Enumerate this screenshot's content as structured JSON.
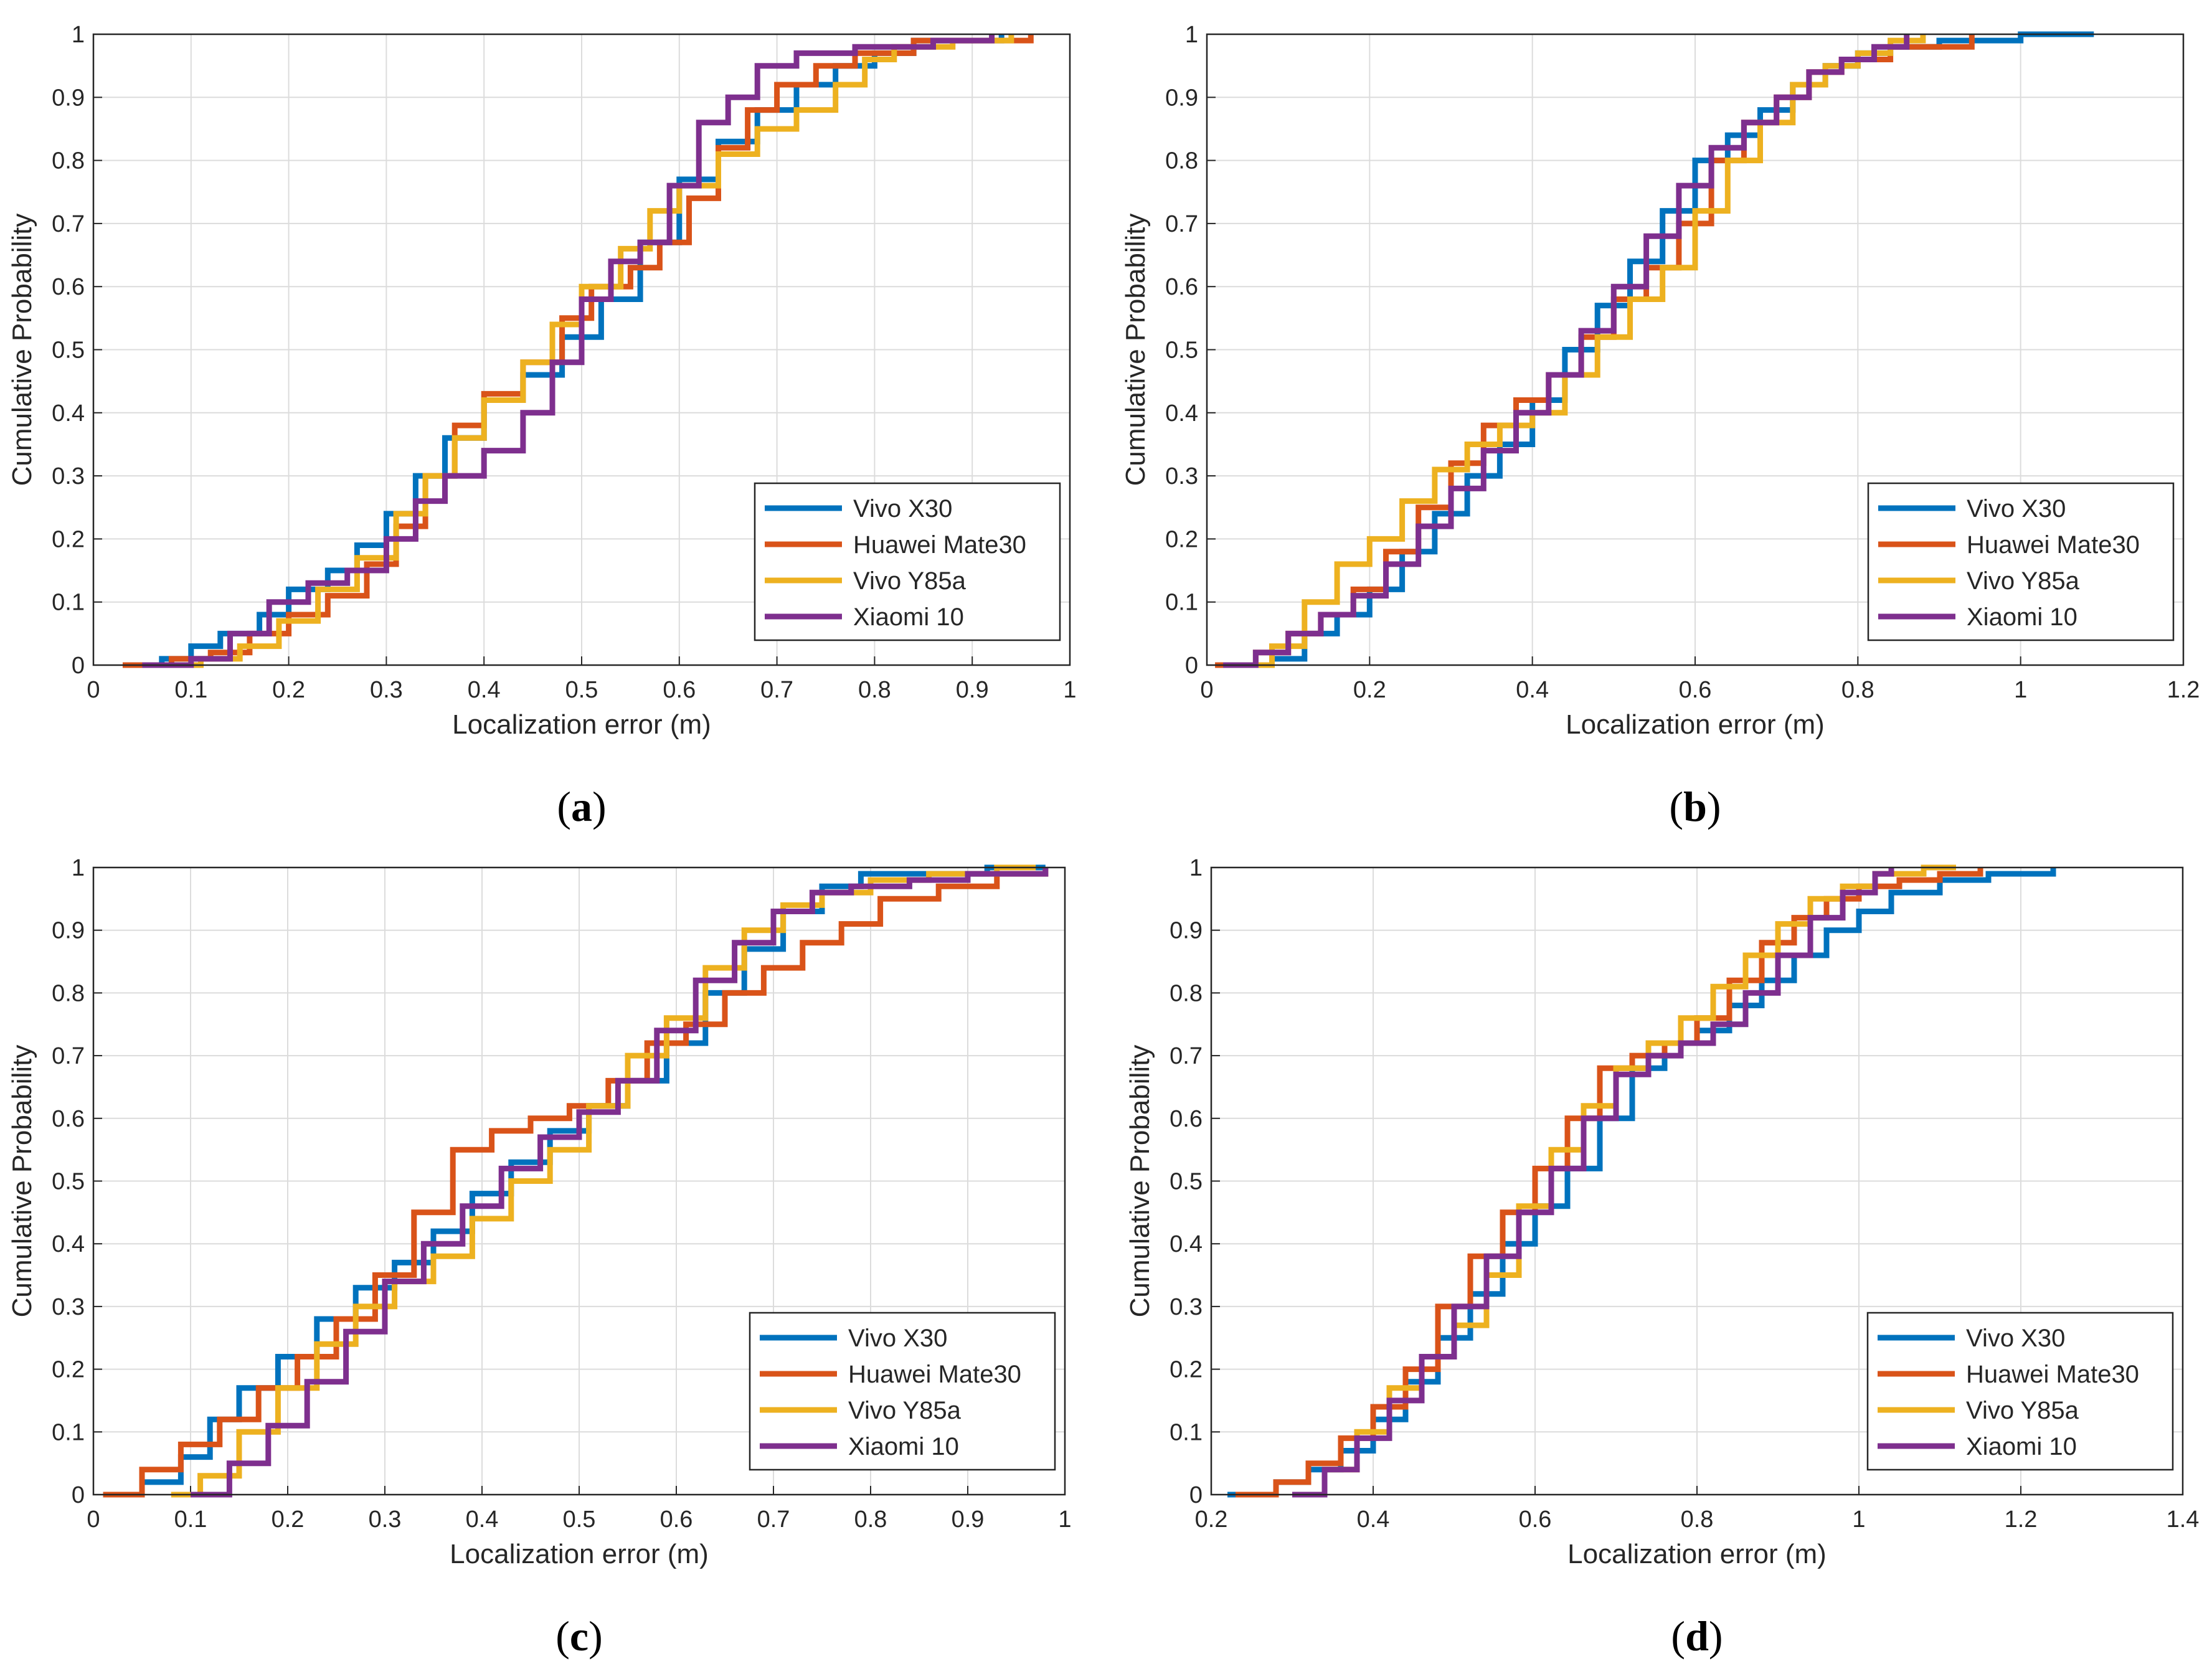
{
  "colors": {
    "vivo_x30": "#0072BD",
    "huawei_mate30": "#D95319",
    "vivo_y85a": "#EDB120",
    "xiaomi_10": "#7E2F8E",
    "grid": "#dcdcdc",
    "axis": "#262626"
  },
  "chart_data": [
    {
      "type": "line",
      "panel": "a",
      "caption_letter": "a",
      "xlabel": "Localization error (m)",
      "ylabel": "Cumulative Probability",
      "xlim": [
        0,
        1
      ],
      "ylim": [
        0,
        1
      ],
      "xticks": [
        "0",
        "0.1",
        "0.2",
        "0.3",
        "0.4",
        "0.5",
        "0.6",
        "0.7",
        "0.8",
        "0.9",
        "1"
      ],
      "yticks": [
        "0",
        "0.1",
        "0.2",
        "0.3",
        "0.4",
        "0.5",
        "0.6",
        "0.7",
        "0.8",
        "0.9",
        "1"
      ],
      "grid": true,
      "legend_position": "bottom-right",
      "series": [
        {
          "name": "Vivo X30",
          "color": "#0072BD",
          "x": [
            0.03,
            0.07,
            0.1,
            0.13,
            0.17,
            0.2,
            0.24,
            0.27,
            0.3,
            0.33,
            0.36,
            0.4,
            0.44,
            0.48,
            0.52,
            0.56,
            0.6,
            0.64,
            0.68,
            0.72,
            0.76,
            0.8,
            0.84,
            0.93
          ],
          "y": [
            0.0,
            0.01,
            0.03,
            0.05,
            0.08,
            0.12,
            0.15,
            0.19,
            0.24,
            0.3,
            0.36,
            0.42,
            0.46,
            0.52,
            0.58,
            0.67,
            0.77,
            0.83,
            0.88,
            0.92,
            0.95,
            0.97,
            0.99,
            1.0
          ]
        },
        {
          "name": "Huawei Mate30",
          "color": "#D95319",
          "x": [
            0.03,
            0.08,
            0.12,
            0.16,
            0.2,
            0.24,
            0.28,
            0.31,
            0.34,
            0.37,
            0.4,
            0.44,
            0.48,
            0.51,
            0.55,
            0.58,
            0.61,
            0.64,
            0.67,
            0.7,
            0.74,
            0.78,
            0.84,
            0.96
          ],
          "y": [
            0.0,
            0.01,
            0.02,
            0.05,
            0.08,
            0.11,
            0.16,
            0.22,
            0.3,
            0.38,
            0.43,
            0.48,
            0.55,
            0.6,
            0.63,
            0.67,
            0.74,
            0.82,
            0.88,
            0.92,
            0.95,
            0.97,
            0.99,
            1.0
          ]
        },
        {
          "name": "Vivo Y85a",
          "color": "#EDB120",
          "x": [
            0.06,
            0.11,
            0.15,
            0.19,
            0.23,
            0.27,
            0.31,
            0.34,
            0.37,
            0.4,
            0.44,
            0.47,
            0.5,
            0.54,
            0.57,
            0.6,
            0.64,
            0.68,
            0.72,
            0.76,
            0.79,
            0.82,
            0.88,
            0.94
          ],
          "y": [
            0.0,
            0.01,
            0.03,
            0.07,
            0.12,
            0.17,
            0.24,
            0.3,
            0.36,
            0.42,
            0.48,
            0.54,
            0.6,
            0.66,
            0.72,
            0.76,
            0.81,
            0.85,
            0.88,
            0.92,
            0.96,
            0.98,
            0.99,
            1.0
          ]
        },
        {
          "name": "Xiaomi 10",
          "color": "#7E2F8E",
          "x": [
            0.05,
            0.1,
            0.14,
            0.18,
            0.22,
            0.26,
            0.3,
            0.33,
            0.36,
            0.4,
            0.44,
            0.47,
            0.5,
            0.53,
            0.56,
            0.59,
            0.62,
            0.65,
            0.68,
            0.72,
            0.78,
            0.86,
            0.92
          ],
          "y": [
            0.0,
            0.01,
            0.05,
            0.1,
            0.13,
            0.15,
            0.2,
            0.26,
            0.3,
            0.34,
            0.4,
            0.48,
            0.58,
            0.64,
            0.67,
            0.76,
            0.86,
            0.9,
            0.95,
            0.97,
            0.98,
            0.99,
            1.0
          ]
        }
      ]
    },
    {
      "type": "line",
      "panel": "b",
      "caption_letter": "b",
      "xlabel": "Localization error (m)",
      "ylabel": "Cumulative Probability",
      "xlim": [
        0,
        1.2
      ],
      "ylim": [
        0,
        1
      ],
      "xticks": [
        "0",
        "0.2",
        "0.4",
        "0.6",
        "0.8",
        "1",
        "1.2"
      ],
      "yticks": [
        "0",
        "0.1",
        "0.2",
        "0.3",
        "0.4",
        "0.5",
        "0.6",
        "0.7",
        "0.8",
        "0.9",
        "1"
      ],
      "grid": true,
      "legend_position": "bottom-right",
      "series": [
        {
          "name": "Vivo X30",
          "color": "#0072BD",
          "x": [
            0.03,
            0.08,
            0.12,
            0.16,
            0.2,
            0.24,
            0.28,
            0.32,
            0.36,
            0.4,
            0.44,
            0.48,
            0.52,
            0.56,
            0.6,
            0.64,
            0.68,
            0.72,
            0.76,
            0.8,
            0.84,
            0.9,
            1.0,
            1.09
          ],
          "y": [
            0.0,
            0.01,
            0.05,
            0.08,
            0.12,
            0.18,
            0.24,
            0.3,
            0.35,
            0.42,
            0.5,
            0.57,
            0.64,
            0.72,
            0.8,
            0.84,
            0.88,
            0.92,
            0.95,
            0.97,
            0.98,
            0.99,
            1.0,
            1.0
          ]
        },
        {
          "name": "Huawei Mate30",
          "color": "#D95319",
          "x": [
            0.01,
            0.06,
            0.1,
            0.14,
            0.18,
            0.22,
            0.26,
            0.3,
            0.34,
            0.38,
            0.42,
            0.46,
            0.5,
            0.54,
            0.58,
            0.62,
            0.66,
            0.7,
            0.74,
            0.78,
            0.84,
            0.94
          ],
          "y": [
            0.0,
            0.02,
            0.05,
            0.08,
            0.12,
            0.18,
            0.25,
            0.32,
            0.38,
            0.42,
            0.46,
            0.52,
            0.58,
            0.63,
            0.7,
            0.8,
            0.86,
            0.9,
            0.94,
            0.96,
            0.98,
            1.0
          ]
        },
        {
          "name": "Vivo Y85a",
          "color": "#EDB120",
          "x": [
            0.03,
            0.08,
            0.12,
            0.16,
            0.2,
            0.24,
            0.28,
            0.32,
            0.36,
            0.4,
            0.44,
            0.48,
            0.52,
            0.56,
            0.6,
            0.64,
            0.68,
            0.72,
            0.76,
            0.8,
            0.84,
            0.88
          ],
          "y": [
            0.0,
            0.03,
            0.1,
            0.16,
            0.2,
            0.26,
            0.31,
            0.35,
            0.38,
            0.4,
            0.46,
            0.52,
            0.58,
            0.63,
            0.72,
            0.8,
            0.86,
            0.92,
            0.95,
            0.97,
            0.99,
            1.0
          ]
        },
        {
          "name": "Xiaomi 10",
          "color": "#7E2F8E",
          "x": [
            0.02,
            0.06,
            0.1,
            0.14,
            0.18,
            0.22,
            0.26,
            0.3,
            0.34,
            0.38,
            0.42,
            0.46,
            0.5,
            0.54,
            0.58,
            0.62,
            0.66,
            0.7,
            0.74,
            0.78,
            0.82,
            0.86
          ],
          "y": [
            0.0,
            0.02,
            0.05,
            0.08,
            0.11,
            0.16,
            0.22,
            0.28,
            0.34,
            0.4,
            0.46,
            0.53,
            0.6,
            0.68,
            0.76,
            0.82,
            0.86,
            0.9,
            0.94,
            0.96,
            0.98,
            1.0
          ]
        }
      ]
    },
    {
      "type": "line",
      "panel": "c",
      "caption_letter": "c",
      "xlabel": "Localization error (m)",
      "ylabel": "Cumulative Probability",
      "xlim": [
        0,
        1
      ],
      "ylim": [
        0,
        1
      ],
      "xticks": [
        "0",
        "0.1",
        "0.2",
        "0.3",
        "0.4",
        "0.5",
        "0.6",
        "0.7",
        "0.8",
        "0.9",
        "1"
      ],
      "yticks": [
        "0",
        "0.1",
        "0.2",
        "0.3",
        "0.4",
        "0.5",
        "0.6",
        "0.7",
        "0.8",
        "0.9",
        "1"
      ],
      "grid": true,
      "legend_position": "bottom-right",
      "series": [
        {
          "name": "Vivo X30",
          "color": "#0072BD",
          "x": [
            0.01,
            0.05,
            0.09,
            0.12,
            0.15,
            0.19,
            0.23,
            0.27,
            0.31,
            0.35,
            0.39,
            0.43,
            0.47,
            0.51,
            0.55,
            0.59,
            0.63,
            0.67,
            0.71,
            0.75,
            0.79,
            0.85,
            0.92,
            0.98
          ],
          "y": [
            0.0,
            0.02,
            0.06,
            0.12,
            0.17,
            0.22,
            0.28,
            0.33,
            0.37,
            0.42,
            0.48,
            0.53,
            0.58,
            0.62,
            0.66,
            0.72,
            0.8,
            0.87,
            0.93,
            0.97,
            0.99,
            0.99,
            1.0,
            1.0
          ]
        },
        {
          "name": "Huawei Mate30",
          "color": "#D95319",
          "x": [
            0.01,
            0.05,
            0.09,
            0.13,
            0.17,
            0.21,
            0.25,
            0.29,
            0.33,
            0.37,
            0.41,
            0.45,
            0.49,
            0.53,
            0.57,
            0.61,
            0.65,
            0.69,
            0.73,
            0.77,
            0.81,
            0.87,
            0.93,
            0.98
          ],
          "y": [
            0.0,
            0.04,
            0.08,
            0.12,
            0.17,
            0.22,
            0.28,
            0.35,
            0.45,
            0.55,
            0.58,
            0.6,
            0.62,
            0.66,
            0.72,
            0.75,
            0.8,
            0.84,
            0.88,
            0.91,
            0.95,
            0.97,
            0.99,
            1.0
          ]
        },
        {
          "name": "Vivo Y85a",
          "color": "#EDB120",
          "x": [
            0.08,
            0.11,
            0.15,
            0.19,
            0.23,
            0.27,
            0.31,
            0.35,
            0.39,
            0.43,
            0.47,
            0.51,
            0.55,
            0.59,
            0.63,
            0.67,
            0.71,
            0.75,
            0.8,
            0.86,
            0.93,
            0.97
          ],
          "y": [
            0.0,
            0.03,
            0.1,
            0.17,
            0.24,
            0.3,
            0.34,
            0.38,
            0.44,
            0.5,
            0.55,
            0.62,
            0.7,
            0.76,
            0.84,
            0.9,
            0.94,
            0.96,
            0.98,
            0.99,
            1.0,
            1.0
          ]
        },
        {
          "name": "Xiaomi 10",
          "color": "#7E2F8E",
          "x": [
            0.1,
            0.14,
            0.18,
            0.22,
            0.26,
            0.3,
            0.34,
            0.38,
            0.42,
            0.46,
            0.5,
            0.54,
            0.58,
            0.62,
            0.66,
            0.7,
            0.74,
            0.78,
            0.84,
            0.9,
            0.98
          ],
          "y": [
            0.0,
            0.05,
            0.11,
            0.18,
            0.26,
            0.34,
            0.4,
            0.46,
            0.52,
            0.57,
            0.61,
            0.66,
            0.74,
            0.82,
            0.88,
            0.93,
            0.96,
            0.97,
            0.98,
            0.99,
            1.0
          ]
        }
      ]
    },
    {
      "type": "line",
      "panel": "d",
      "caption_letter": "d",
      "xlabel": "Localization error (m)",
      "ylabel": "Cumulative Probability",
      "xlim": [
        0.2,
        1.4
      ],
      "ylim": [
        0,
        1
      ],
      "xticks": [
        "0.2",
        "0.4",
        "0.6",
        "0.8",
        "1",
        "1.2",
        "1.4"
      ],
      "yticks": [
        "0",
        "0.1",
        "0.2",
        "0.3",
        "0.4",
        "0.5",
        "0.6",
        "0.7",
        "0.8",
        "0.9",
        "1"
      ],
      "grid": true,
      "legend_position": "bottom-right",
      "series": [
        {
          "name": "Vivo X30",
          "color": "#0072BD",
          "x": [
            0.22,
            0.28,
            0.32,
            0.36,
            0.4,
            0.44,
            0.48,
            0.52,
            0.56,
            0.6,
            0.64,
            0.68,
            0.72,
            0.76,
            0.8,
            0.84,
            0.88,
            0.92,
            0.96,
            1.0,
            1.04,
            1.1,
            1.16,
            1.24
          ],
          "y": [
            0.0,
            0.02,
            0.04,
            0.07,
            0.12,
            0.18,
            0.25,
            0.32,
            0.4,
            0.46,
            0.52,
            0.6,
            0.68,
            0.72,
            0.74,
            0.78,
            0.82,
            0.86,
            0.9,
            0.93,
            0.96,
            0.98,
            0.99,
            1.0
          ]
        },
        {
          "name": "Huawei Mate30",
          "color": "#D95319",
          "x": [
            0.23,
            0.28,
            0.32,
            0.36,
            0.4,
            0.44,
            0.48,
            0.52,
            0.56,
            0.6,
            0.64,
            0.68,
            0.72,
            0.76,
            0.8,
            0.84,
            0.88,
            0.92,
            0.96,
            1.0,
            1.05,
            1.1,
            1.15
          ],
          "y": [
            0.0,
            0.02,
            0.05,
            0.09,
            0.14,
            0.2,
            0.3,
            0.38,
            0.45,
            0.52,
            0.6,
            0.68,
            0.7,
            0.72,
            0.76,
            0.82,
            0.88,
            0.92,
            0.95,
            0.97,
            0.98,
            0.99,
            1.0
          ]
        },
        {
          "name": "Vivo Y85a",
          "color": "#EDB120",
          "x": [
            0.3,
            0.34,
            0.38,
            0.42,
            0.46,
            0.5,
            0.54,
            0.58,
            0.62,
            0.66,
            0.7,
            0.74,
            0.78,
            0.82,
            0.86,
            0.9,
            0.94,
            0.98,
            1.02,
            1.08,
            1.12
          ],
          "y": [
            0.0,
            0.04,
            0.1,
            0.17,
            0.22,
            0.27,
            0.35,
            0.46,
            0.55,
            0.62,
            0.68,
            0.72,
            0.76,
            0.81,
            0.86,
            0.91,
            0.95,
            0.97,
            0.99,
            1.0,
            1.0
          ]
        },
        {
          "name": "Xiaomi 10",
          "color": "#7E2F8E",
          "x": [
            0.3,
            0.34,
            0.38,
            0.42,
            0.46,
            0.5,
            0.54,
            0.58,
            0.62,
            0.66,
            0.7,
            0.74,
            0.78,
            0.82,
            0.86,
            0.9,
            0.94,
            0.98,
            1.02,
            1.04
          ],
          "y": [
            0.0,
            0.04,
            0.09,
            0.15,
            0.22,
            0.3,
            0.38,
            0.45,
            0.52,
            0.6,
            0.67,
            0.7,
            0.72,
            0.75,
            0.8,
            0.86,
            0.92,
            0.96,
            0.99,
            1.0
          ]
        }
      ]
    }
  ]
}
